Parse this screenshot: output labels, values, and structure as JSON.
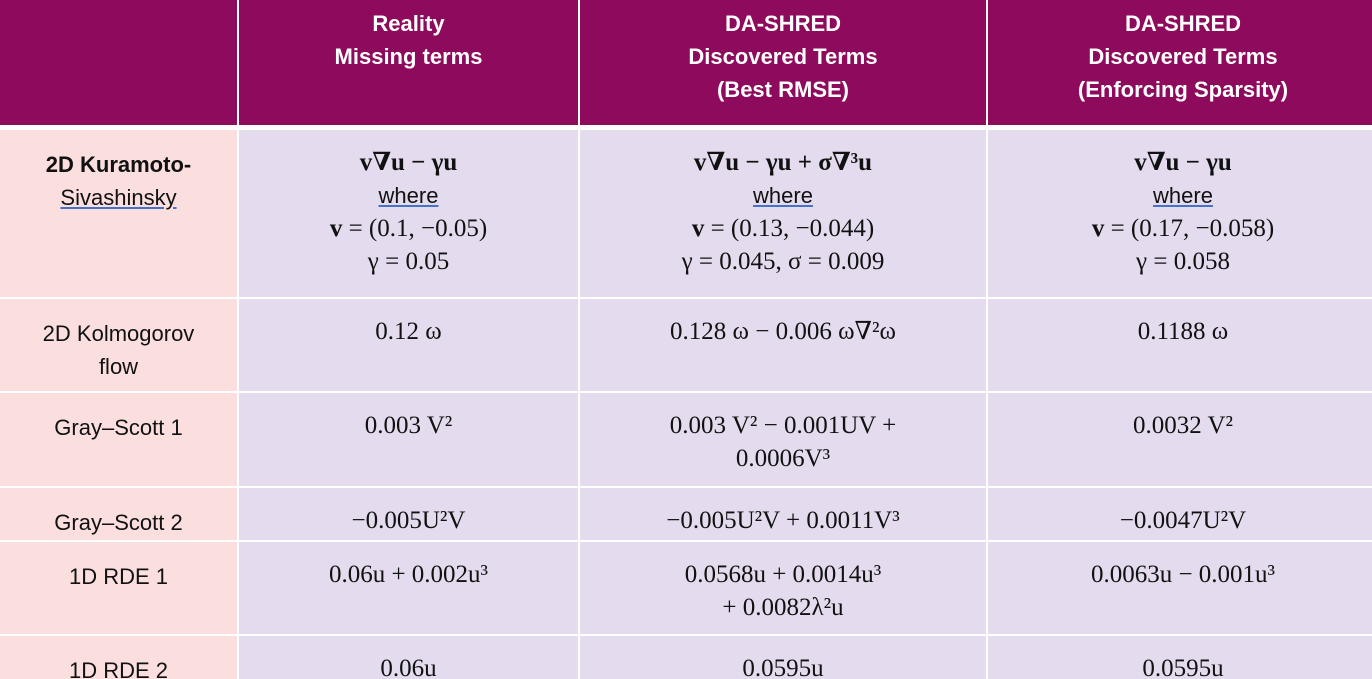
{
  "table": {
    "header": [
      [],
      [
        "Reality",
        "Missing terms"
      ],
      [
        "DA-SHRED",
        "Discovered Terms",
        "(Best RMSE)"
      ],
      [
        "DA-SHRED",
        "Discovered Terms",
        "(Enforcing Sparsity)"
      ]
    ],
    "rows": [
      {
        "label": [
          "2D Kuramoto-",
          "Sivashinsky"
        ],
        "cells": [
          [
            "v∇u − γu",
            "where",
            "v  =  (0.1, −0.05)",
            "γ  =  0.05"
          ],
          [
            "v∇u − γu + σ∇³u",
            "where",
            "v  =  (0.13, −0.044)",
            "γ  =  0.045, σ  =  0.009"
          ],
          [
            "v∇u − γu",
            "where",
            "v  =  (0.17, −0.058)",
            "γ  =  0.058"
          ]
        ]
      },
      {
        "label": [
          "2D Kolmogorov",
          "flow"
        ],
        "cells": [
          [
            "0.12 ω"
          ],
          [
            "0.128 ω  −  0.006 ω∇²ω"
          ],
          [
            "0.1188 ω"
          ]
        ]
      },
      {
        "label": [
          "Gray–Scott 1"
        ],
        "cells": [
          [
            "0.003 V²"
          ],
          [
            "0.003 V² − 0.001UV +",
            "0.0006V³"
          ],
          [
            "0.0032 V²"
          ]
        ]
      },
      {
        "label": [
          "Gray–Scott 2"
        ],
        "cells": [
          [
            "−0.005U²V"
          ],
          [
            "−0.005U²V + 0.0011V³"
          ],
          [
            "−0.0047U²V"
          ]
        ]
      },
      {
        "label": [
          "1D RDE 1"
        ],
        "cells": [
          [
            "0.06u + 0.002u³"
          ],
          [
            "0.0568u + 0.0014u³",
            "+ 0.0082λ²u"
          ],
          [
            "0.0063u − 0.001u³"
          ]
        ]
      },
      {
        "label": [
          "1D RDE 2"
        ],
        "cells": [
          [
            "0.06u"
          ],
          [
            "0.0595u"
          ],
          [
            "0.0595u"
          ]
        ]
      }
    ]
  }
}
